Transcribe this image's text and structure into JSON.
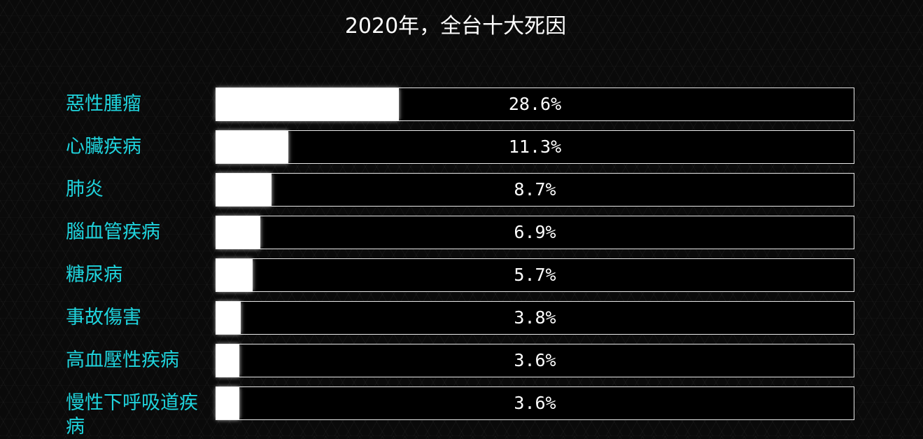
{
  "chart_data": {
    "type": "bar",
    "orientation": "horizontal",
    "title": "2020年，全台十大死因",
    "categories": [
      "惡性腫瘤",
      "心臟疾病",
      "肺炎",
      "腦血管疾病",
      "糖尿病",
      "事故傷害",
      "高血壓性疾病",
      "慢性下呼吸道疾病"
    ],
    "values": [
      28.6,
      11.3,
      8.7,
      6.9,
      5.7,
      3.8,
      3.6,
      3.6
    ],
    "value_labels": [
      "28.6%",
      "11.3%",
      "8.7%",
      "6.9%",
      "5.7%",
      "3.8%",
      "3.6%",
      "3.6%"
    ],
    "xlim": [
      0,
      100
    ],
    "colors": {
      "bar_fill": "#ffffff",
      "bar_track": "#000000",
      "label": "#1fd3dc",
      "text": "#ffffff"
    }
  }
}
